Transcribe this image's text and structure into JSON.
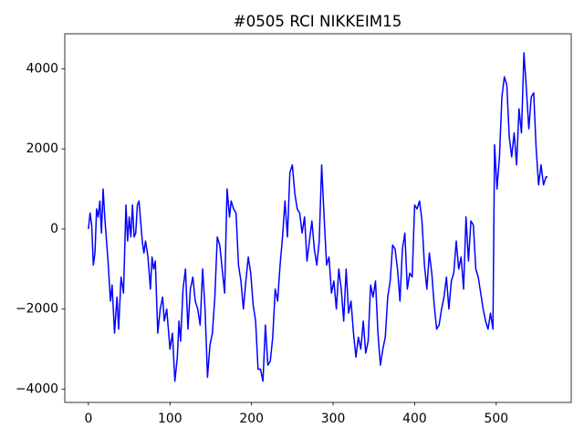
{
  "chart_data": {
    "type": "line",
    "title": "#0505 RCI NIKKEIM15",
    "x": [
      0,
      2,
      4,
      6,
      8,
      10,
      12,
      14,
      16,
      18,
      20,
      24,
      27,
      29,
      32,
      35,
      37,
      40,
      43,
      46,
      48,
      50,
      52,
      54,
      56,
      58,
      60,
      62,
      64,
      66,
      68,
      70,
      73,
      76,
      78,
      80,
      82,
      85,
      88,
      91,
      93,
      96,
      100,
      103,
      106,
      109,
      111,
      113,
      116,
      119,
      122,
      125,
      128,
      131,
      134,
      137,
      140,
      143,
      146,
      149,
      152,
      155,
      158,
      161,
      164,
      167,
      170,
      173,
      175,
      178,
      181,
      184,
      187,
      190,
      193,
      196,
      199,
      202,
      205,
      208,
      211,
      214,
      217,
      220,
      223,
      226,
      229,
      232,
      235,
      238,
      241,
      244,
      247,
      250,
      253,
      256,
      259,
      262,
      265,
      268,
      271,
      274,
      277,
      280,
      283,
      286,
      289,
      292,
      295,
      298,
      301,
      304,
      307,
      310,
      313,
      316,
      319,
      322,
      325,
      328,
      331,
      334,
      337,
      340,
      343,
      346,
      349,
      352,
      355,
      358,
      361,
      364,
      367,
      370,
      373,
      376,
      379,
      382,
      385,
      388,
      391,
      394,
      397,
      400,
      403,
      406,
      409,
      412,
      415,
      418,
      421,
      424,
      427,
      430,
      433,
      436,
      439,
      442,
      445,
      448,
      451,
      454,
      457,
      460,
      463,
      466,
      469,
      472,
      475,
      478,
      481,
      484,
      487,
      490,
      493,
      496,
      498,
      501,
      504,
      507,
      510,
      513,
      516,
      519,
      522,
      525,
      528,
      531,
      534,
      537,
      540,
      543,
      546,
      549,
      552,
      555,
      558,
      561,
      563
    ],
    "series": [
      {
        "color": "#0000ff",
        "values": [
          0,
          400,
          100,
          -900,
          -600,
          500,
          300,
          700,
          -100,
          1000,
          300,
          -800,
          -1800,
          -1400,
          -2600,
          -1700,
          -2500,
          -1200,
          -1600,
          600,
          -300,
          300,
          -200,
          600,
          -200,
          -100,
          600,
          700,
          200,
          -300,
          -600,
          -300,
          -700,
          -1500,
          -700,
          -1000,
          -800,
          -2600,
          -2000,
          -1700,
          -2300,
          -2000,
          -3000,
          -2600,
          -3800,
          -3200,
          -2300,
          -2800,
          -1500,
          -1000,
          -2500,
          -1500,
          -1200,
          -1800,
          -2000,
          -2400,
          -1000,
          -2000,
          -3700,
          -2900,
          -2600,
          -1700,
          -200,
          -400,
          -1000,
          -1600,
          1000,
          300,
          700,
          500,
          400,
          -900,
          -1300,
          -2000,
          -1300,
          -700,
          -1100,
          -1900,
          -2300,
          -3500,
          -3500,
          -3800,
          -2400,
          -3400,
          -3300,
          -2700,
          -1500,
          -1800,
          -900,
          -200,
          700,
          -200,
          1400,
          1600,
          900,
          500,
          400,
          -100,
          300,
          -800,
          -300,
          200,
          -500,
          -900,
          -300,
          1600,
          300,
          -900,
          -700,
          -1600,
          -1300,
          -2000,
          -1000,
          -1500,
          -2300,
          -1000,
          -2100,
          -1800,
          -2600,
          -3200,
          -2700,
          -3000,
          -2300,
          -3100,
          -2800,
          -1400,
          -1700,
          -1300,
          -2600,
          -3400,
          -3000,
          -2700,
          -1700,
          -1300,
          -400,
          -500,
          -1000,
          -1800,
          -500,
          -100,
          -1500,
          -1100,
          -1200,
          600,
          500,
          700,
          200,
          -900,
          -1500,
          -600,
          -1100,
          -1900,
          -2500,
          -2400,
          -2000,
          -1700,
          -1200,
          -2000,
          -1300,
          -1100,
          -300,
          -1000,
          -700,
          -1500,
          300,
          -800,
          200,
          100,
          -1000,
          -1200,
          -1600,
          -2000,
          -2300,
          -2500,
          -2100,
          -2500,
          2100,
          1000,
          1800,
          3300,
          3800,
          3600,
          2300,
          1800,
          2400,
          1600,
          3000,
          2400,
          4400,
          3500,
          2500,
          3300,
          3400,
          2000,
          1100,
          1600,
          1100,
          1300,
          1300
        ]
      }
    ],
    "xlim": [
      -29,
      592
    ],
    "ylim": [
      -4330,
      4875
    ],
    "xticks": [
      0,
      100,
      200,
      300,
      400,
      500
    ],
    "yticks": [
      {
        "value": -4000,
        "label": "−4000"
      },
      {
        "value": -2000,
        "label": "−2000"
      },
      0,
      2000,
      4000
    ]
  }
}
